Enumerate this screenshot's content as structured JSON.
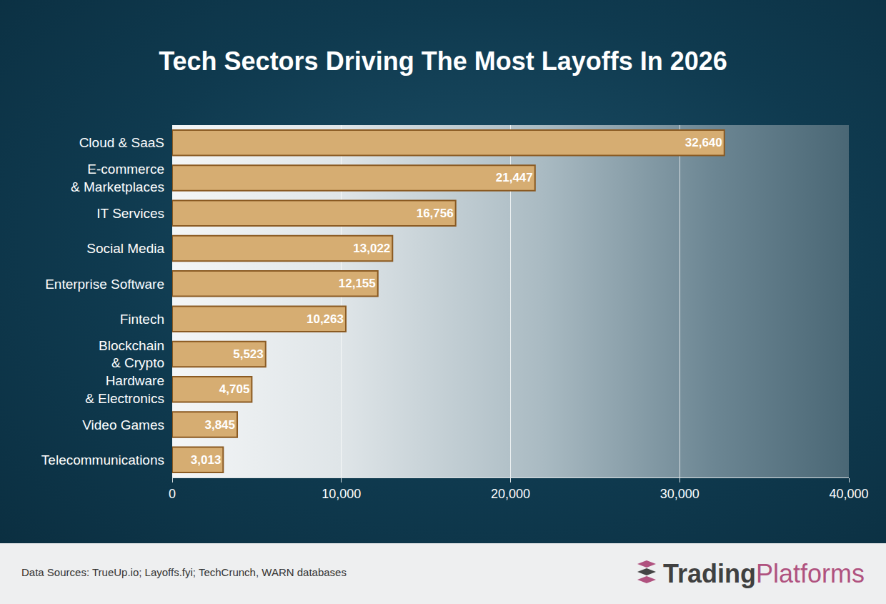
{
  "chart_data": {
    "type": "bar",
    "title": "Tech Sectors Driving The Most Layoffs In 2026",
    "orientation": "horizontal",
    "categories": [
      "Cloud & SaaS",
      "E-commerce & Marketplaces",
      "IT Services",
      "Social Media",
      "Enterprise Software",
      "Fintech",
      "Blockchain & Crypto",
      "Hardware & Electronics",
      "Video Games",
      "Telecommunications"
    ],
    "values": [
      32640,
      21447,
      16756,
      13022,
      12155,
      10263,
      5523,
      4705,
      3845,
      3013
    ],
    "value_labels": [
      "32,640",
      "21,447",
      "16,756",
      "13,022",
      "12,155",
      "10,263",
      "5,523",
      "4,705",
      "3,845",
      "3,013"
    ],
    "data_labels": true,
    "color": "#d6ad72",
    "xlim": [
      0,
      40000
    ],
    "xticks": [
      0,
      {
        "value": 10000,
        "label": "10,000"
      },
      {
        "value": 20000,
        "label": "20,000"
      },
      {
        "value": 30000,
        "label": "30,000"
      },
      {
        "value": 40000,
        "label": "40,000"
      }
    ],
    "grid": true,
    "annotations": [
      "Data Sources: TrueUp.io; Layoffs.fyi; TechCrunch, WARN databases",
      "Trading",
      "Platforms"
    ]
  }
}
